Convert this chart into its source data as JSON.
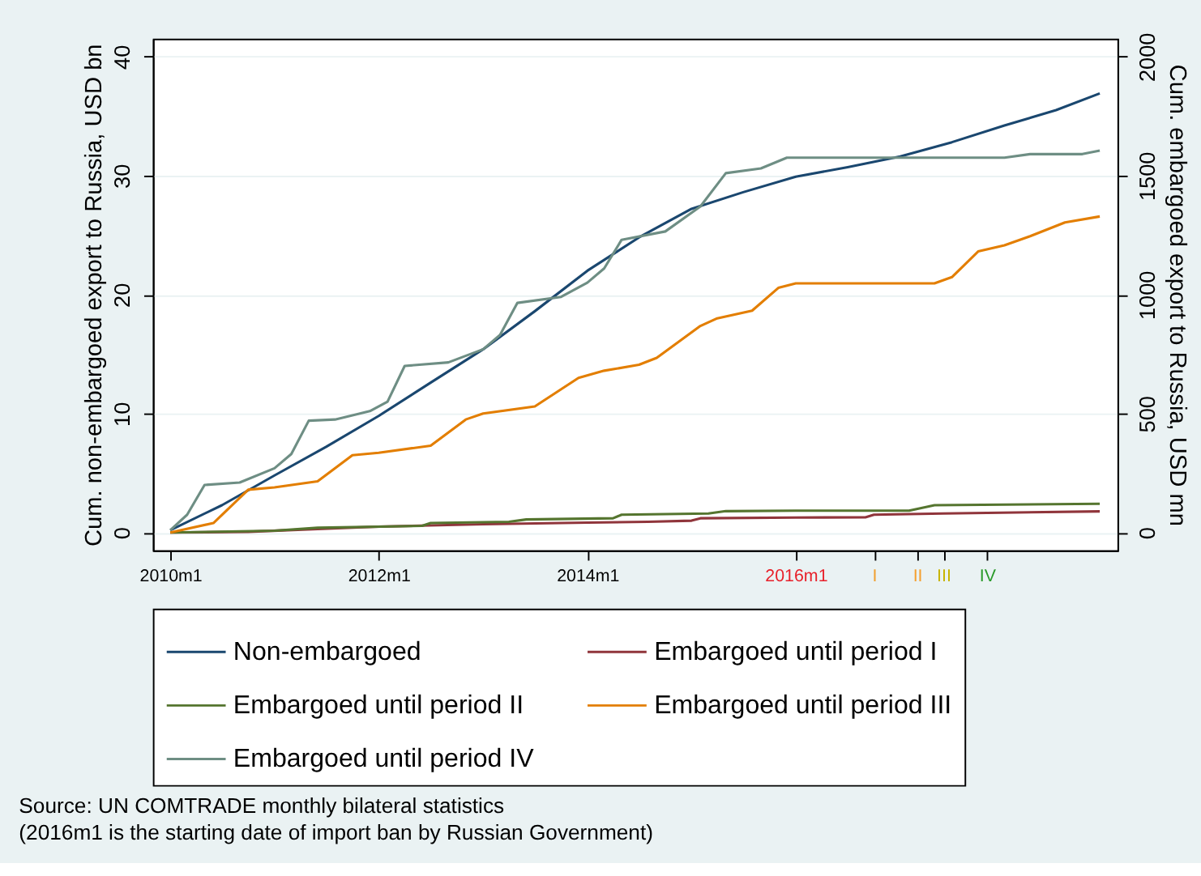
{
  "chart_data": {
    "type": "line",
    "xlabel": null,
    "ylabel": "Cum. non-embargoed export to Russia, USD bn",
    "y2label": "Cum. embargoed export to Russia, USD mn",
    "xlim": [
      "2009-11",
      "2019-02"
    ],
    "xticks": [
      {
        "value": "2010-01",
        "label": "2010m1"
      },
      {
        "value": "2012-01",
        "label": "2012m1"
      },
      {
        "value": "2014-01",
        "label": "2014m1"
      },
      {
        "value": "2016-01",
        "label": "2016m1"
      },
      {
        "value": "2016-10",
        "label": "I"
      },
      {
        "value": "2017-03",
        "label": "II"
      },
      {
        "value": "2017-06",
        "label": "III"
      },
      {
        "value": "2017-11",
        "label": "IV"
      }
    ],
    "ylim": [
      -1.5,
      41.5
    ],
    "yticks": [
      0,
      10,
      20,
      30,
      40
    ],
    "y2lim": [
      -75,
      2075
    ],
    "y2ticks": [
      0,
      500,
      1000,
      1500,
      2000
    ],
    "grid": "y",
    "legend": "bottom",
    "line_style": "solid",
    "marker": "none",
    "series": [
      {
        "name": "Non-embargoed",
        "color": "#1a476f",
        "x": [
          "2010-01",
          "2010-07",
          "2011-01",
          "2011-07",
          "2012-01",
          "2012-07",
          "2013-01",
          "2013-07",
          "2014-01",
          "2014-07",
          "2015-01",
          "2015-07",
          "2016-01",
          "2016-07",
          "2017-01",
          "2017-07",
          "2018-01",
          "2018-07",
          "2018-12"
        ],
        "values": [
          0.2,
          2.3,
          4.8,
          7.2,
          9.8,
          12.6,
          15.4,
          18.6,
          22.0,
          24.8,
          27.2,
          28.6,
          29.9,
          30.7,
          31.6,
          32.8,
          34.2,
          35.5,
          36.9
        ]
      },
      {
        "name": "Embargoed until period I",
        "color": "#90353b",
        "axis": "y2",
        "x": [
          "2010-01",
          "2010-10",
          "2011-06",
          "2012-01",
          "2013-01",
          "2014-01",
          "2014-08",
          "2015-01",
          "2015-02",
          "2016-01",
          "2016-09",
          "2016-10",
          "2017-06",
          "2018-12"
        ],
        "values": [
          0,
          3,
          15,
          25,
          35,
          42,
          45,
          50,
          60,
          63,
          64,
          75,
          80,
          89
        ]
      },
      {
        "name": "Embargoed until period II",
        "color": "#55752f",
        "axis": "y2",
        "x": [
          "2010-01",
          "2011-01",
          "2011-06",
          "2012-06",
          "2012-07",
          "2013-04",
          "2013-06",
          "2014-04",
          "2014-05",
          "2015-03",
          "2015-05",
          "2016-01",
          "2017-02",
          "2017-05",
          "2018-12"
        ],
        "values": [
          0,
          8,
          20,
          28,
          40,
          45,
          55,
          60,
          75,
          80,
          90,
          92,
          92,
          115,
          121
        ]
      },
      {
        "name": "Embargoed until period III",
        "color": "#e37e00",
        "axis": "y2",
        "x": [
          "2010-01",
          "2010-06",
          "2010-10",
          "2011-01",
          "2011-06",
          "2011-10",
          "2012-01",
          "2012-07",
          "2012-11",
          "2013-01",
          "2013-07",
          "2013-12",
          "2014-03",
          "2014-07",
          "2014-09",
          "2015-02",
          "2015-04",
          "2015-08",
          "2015-11",
          "2016-01",
          "2017-05",
          "2017-07",
          "2017-10",
          "2018-01",
          "2018-04",
          "2018-08",
          "2018-12"
        ],
        "values": [
          0,
          40,
          180,
          190,
          215,
          325,
          335,
          365,
          475,
          500,
          530,
          650,
          680,
          705,
          734,
          868,
          900,
          932,
          1028,
          1047,
          1047,
          1073,
          1181,
          1207,
          1245,
          1303,
          1328
        ]
      },
      {
        "name": "Embargoed until period IV",
        "color": "#6e8e84",
        "axis": "y2",
        "x": [
          "2010-01",
          "2010-03",
          "2010-05",
          "2010-09",
          "2011-01",
          "2011-03",
          "2011-05",
          "2011-08",
          "2011-12",
          "2012-02",
          "2012-04",
          "2012-09",
          "2013-01",
          "2013-03",
          "2013-05",
          "2013-10",
          "2014-01",
          "2014-03",
          "2014-05",
          "2014-10",
          "2015-02",
          "2015-05",
          "2015-09",
          "2015-12",
          "2018-01",
          "2018-04",
          "2018-10",
          "2018-12"
        ],
        "values": [
          10,
          75,
          200,
          210,
          270,
          330,
          470,
          475,
          510,
          550,
          700,
          715,
          770,
          830,
          965,
          990,
          1050,
          1110,
          1230,
          1265,
          1370,
          1510,
          1530,
          1575,
          1575,
          1590,
          1590,
          1605
        ]
      }
    ],
    "annotations": [
      "Source: UN COMTRADE monthly bilateral statistics",
      "(2016m1 is the starting date of import ban by Russian Government)"
    ]
  }
}
